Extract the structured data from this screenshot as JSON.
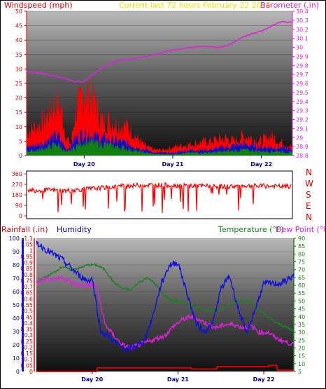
{
  "header": {
    "windspeed_label": "Windspeed (mph)",
    "current_label": "Current last 72 hours February 22 2026",
    "barometer_label": "Barometer (.in)"
  },
  "lower_header": {
    "rainfall_label": "Rainfall (.in)",
    "humidity_label": "Humidity",
    "temperature_label": "Temperature (°F)",
    "dewpoint_label": "Dew Point (°F)"
  },
  "compass": [
    "N",
    "W",
    "S",
    "E",
    "N"
  ],
  "colors": {
    "wind_gust": "#ff0000",
    "wind_avg": "#1010c0",
    "wind_low": "#108010",
    "barometer": "#e020e0",
    "direction": "#ff0000",
    "rain": "#dd0000",
    "humidity": "#1010e0",
    "temperature": "#208020",
    "dewpoint": "#e020e0",
    "header_yellow": "#e6e600"
  },
  "chart_data": [
    {
      "type": "area",
      "name": "wind-barometer",
      "day_labels": [
        "Day 20",
        "Day 21",
        "Day 22"
      ],
      "x_days": [
        19.35,
        22.35
      ],
      "y_left": {
        "label": "Windspeed (mph)",
        "range": [
          0,
          50
        ],
        "ticks": [
          0,
          5,
          10,
          15,
          20,
          25,
          30,
          35,
          40,
          45,
          50
        ]
      },
      "y_right": {
        "label": "Barometer (.in)",
        "range": [
          28.8,
          30.4
        ],
        "ticks": [
          "28.8",
          "28.9",
          "29",
          "29.1",
          "29.2",
          "29.3",
          "29.4",
          "29.5",
          "29.6",
          "29.7",
          "29.8",
          "29.9",
          "30",
          "30.1",
          "30.2",
          "30.3",
          "30.4"
        ]
      },
      "series": [
        {
          "name": "gust",
          "x": [
            19.35,
            19.45,
            19.55,
            19.6,
            19.65,
            19.7,
            19.75,
            19.8,
            19.85,
            19.9,
            19.95,
            20.0,
            20.1,
            20.2,
            20.3,
            20.4,
            20.5,
            20.6,
            20.7,
            20.8,
            20.9,
            21.0,
            21.2,
            21.4,
            21.6,
            21.7,
            21.8,
            21.9,
            22.0,
            22.1,
            22.2,
            22.35
          ],
          "values": [
            8,
            10,
            12,
            15,
            17,
            18,
            15,
            6,
            4,
            15,
            18,
            22,
            20,
            12,
            12,
            11,
            10,
            6,
            3,
            2,
            2,
            3,
            4,
            5,
            6,
            5,
            7,
            6,
            5,
            7,
            5,
            3
          ]
        },
        {
          "name": "average",
          "x": [
            19.35,
            19.5,
            19.6,
            19.7,
            19.8,
            19.9,
            20.0,
            20.2,
            20.4,
            20.6,
            20.8,
            21.0,
            21.2,
            21.4,
            21.6,
            21.8,
            22.0,
            22.2,
            22.35
          ],
          "values": [
            3,
            4,
            6,
            7,
            2,
            6,
            8,
            6,
            5,
            3,
            1,
            1,
            2,
            2,
            3,
            4,
            3,
            3,
            2
          ]
        },
        {
          "name": "low",
          "x": [
            19.35,
            19.5,
            19.6,
            19.7,
            19.8,
            19.9,
            20.0,
            20.2,
            20.4,
            20.6,
            20.8,
            21.0,
            21.2,
            21.4,
            21.6,
            21.8,
            22.0,
            22.2,
            22.35
          ],
          "values": [
            1.5,
            2,
            3,
            4,
            1,
            3,
            5,
            4,
            3,
            1.5,
            0.5,
            0.5,
            1,
            1,
            1.5,
            2,
            1.5,
            1.5,
            1
          ]
        },
        {
          "name": "barometer",
          "x": [
            19.35,
            19.6,
            19.8,
            19.9,
            20.0,
            20.05,
            20.2,
            20.4,
            20.6,
            20.8,
            21.0,
            21.2,
            21.4,
            21.5,
            21.6,
            21.8,
            22.0,
            22.1,
            22.2,
            22.35
          ],
          "values": [
            29.73,
            29.7,
            29.65,
            29.62,
            29.62,
            29.66,
            29.78,
            29.86,
            29.88,
            29.92,
            29.97,
            30.0,
            30.01,
            30.0,
            30.01,
            30.12,
            30.18,
            30.23,
            30.28,
            30.28
          ]
        }
      ]
    },
    {
      "type": "line",
      "name": "wind-direction",
      "y_left": {
        "range": [
          0,
          360
        ],
        "ticks": [
          0,
          90,
          180,
          270,
          360
        ]
      },
      "series": [
        {
          "name": "direction",
          "x": [
            19.35,
            19.5,
            19.6,
            19.7,
            19.8,
            19.9,
            20.0,
            20.2,
            20.4,
            20.6,
            20.8,
            21.0,
            21.2,
            21.4,
            21.6,
            21.8,
            22.0,
            22.2,
            22.35
          ],
          "values": [
            225,
            220,
            222,
            218,
            215,
            222,
            228,
            240,
            255,
            262,
            265,
            262,
            258,
            255,
            250,
            258,
            255,
            252,
            250
          ]
        }
      ]
    },
    {
      "type": "line",
      "name": "rain-humidity-temperature",
      "day_labels": [
        "Day 20",
        "Day 21",
        "Day 22"
      ],
      "y_left": {
        "label": "Humidity",
        "range": [
          0,
          100
        ],
        "ticks": [
          0,
          10,
          20,
          30,
          40,
          50,
          60,
          70,
          80,
          90,
          100
        ]
      },
      "y_rain": {
        "label": "Rainfall (.in)",
        "range": [
          0,
          1.1
        ],
        "ticks": [
          "0",
          "0.05",
          "0.1",
          "0.15",
          "0.2",
          "0.25",
          "0.3",
          "0.35",
          "0.4",
          "0.45",
          "0.5",
          "0.55",
          "0.6",
          "0.65",
          "0.7",
          "0.75",
          "0.8",
          "0.85",
          "0.9",
          "0.95",
          "1",
          "1.05",
          "1.1"
        ]
      },
      "y_right": {
        "label": "Temperature (°F)",
        "range": [
          5,
          90
        ],
        "ticks": [
          5,
          10,
          15,
          20,
          25,
          30,
          35,
          40,
          45,
          50,
          55,
          60,
          65,
          70,
          75,
          80,
          85,
          90
        ]
      },
      "series": [
        {
          "name": "humidity",
          "x": [
            19.35,
            19.45,
            19.55,
            19.65,
            19.75,
            19.85,
            19.95,
            20.0,
            20.1,
            20.2,
            20.3,
            20.4,
            20.5,
            20.6,
            20.7,
            20.8,
            20.9,
            21.0,
            21.1,
            21.2,
            21.3,
            21.4,
            21.5,
            21.6,
            21.7,
            21.8,
            22.0,
            22.2,
            22.35
          ],
          "values": [
            97,
            92,
            88,
            84,
            78,
            72,
            68,
            70,
            30,
            26,
            20,
            16,
            19,
            22,
            40,
            65,
            80,
            82,
            60,
            38,
            30,
            35,
            62,
            72,
            48,
            28,
            66,
            66,
            72
          ]
        },
        {
          "name": "temperature",
          "x": [
            19.35,
            19.45,
            19.55,
            19.65,
            19.75,
            19.85,
            19.95,
            20.05,
            20.15,
            20.25,
            20.35,
            20.45,
            20.55,
            20.65,
            20.75,
            20.85,
            20.95,
            21.05,
            21.15,
            21.25,
            21.35,
            21.45,
            21.55,
            21.65,
            21.75,
            21.85,
            21.95,
            22.05,
            22.15,
            22.35
          ],
          "values": [
            62,
            65,
            68,
            72,
            70,
            71,
            73,
            73,
            70,
            62,
            58,
            57,
            62,
            65,
            60,
            53,
            50,
            50,
            47,
            46,
            44,
            44,
            46,
            50,
            50,
            50,
            44,
            40,
            36,
            31
          ]
        },
        {
          "name": "dewpoint",
          "x": [
            19.35,
            19.45,
            19.55,
            19.65,
            19.75,
            19.85,
            19.95,
            20.05,
            20.15,
            20.25,
            20.35,
            20.45,
            20.55,
            20.65,
            20.75,
            20.85,
            20.95,
            21.05,
            21.15,
            21.25,
            21.35,
            21.45,
            21.55,
            21.65,
            21.75,
            21.85,
            21.95,
            22.05,
            22.15,
            22.35
          ],
          "values": [
            62,
            64,
            64,
            65,
            62,
            60,
            60,
            60,
            35,
            28,
            22,
            20,
            22,
            24,
            26,
            28,
            34,
            38,
            40,
            38,
            35,
            33,
            35,
            35,
            33,
            34,
            30,
            30,
            26,
            22
          ]
        },
        {
          "name": "rain",
          "x": [
            19.35,
            20.05,
            20.06,
            21.15,
            21.16,
            21.45,
            21.46,
            22.05,
            22.06,
            22.15,
            22.16,
            22.35
          ],
          "values": [
            0.0,
            0.0,
            0.03,
            0.03,
            0.02,
            0.02,
            0.04,
            0.04,
            0.05,
            0.05,
            0.01,
            0.01
          ]
        }
      ]
    }
  ]
}
